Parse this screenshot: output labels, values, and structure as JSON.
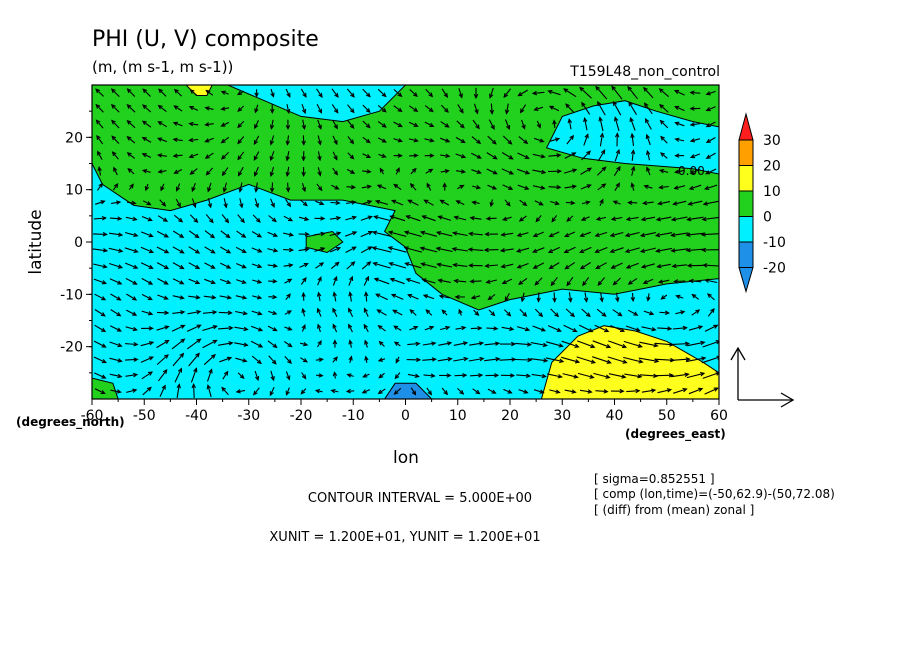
{
  "title": "PHI (U, V) composite",
  "units": "(m, (m s-1, m s-1))",
  "run_name": "T159L48_non_control",
  "xlabel": "lon",
  "ylabel": "latitude",
  "x_unit_label": "(degrees_east)",
  "y_unit_label": "(degrees_north)",
  "contour_interval": "CONTOUR INTERVAL = 5.000E+00",
  "vector_units": "XUNIT = 1.200E+01, YUNIT = 1.200E+01",
  "info_lines": [
    "[ sigma=0.852551 ]",
    "[ comp (lon,time)=(-50,62.9)-(50,72.08)",
    "[ (diff) from (mean) zonal ]"
  ],
  "contour_label": "0.00",
  "colors": {
    "level_neg20": "#1e90e8",
    "level_neg10": "#00f0ff",
    "level_0": "#22d01e",
    "level_10": "#ffff1e",
    "level_20": "#ffa000",
    "level_30": "#ff1e1e"
  },
  "chart_data": {
    "type": "heatmap",
    "overlay": "vector",
    "xlim": [
      -60,
      60
    ],
    "ylim": [
      -30,
      30
    ],
    "x_ticks": [
      -60,
      -50,
      -40,
      -30,
      -20,
      -10,
      0,
      10,
      20,
      30,
      40,
      50,
      60
    ],
    "y_ticks": [
      -20,
      -10,
      0,
      10,
      20
    ],
    "colorbar": {
      "levels": [
        -20,
        -10,
        0,
        10,
        20,
        30
      ],
      "labels": [
        "-20",
        "-10",
        "0",
        "10",
        "20",
        "30"
      ],
      "extend": "both"
    },
    "regions": [
      {
        "value_range": [
          -10,
          0
        ],
        "description": "background",
        "polygon": []
      },
      {
        "value_range": [
          0,
          10
        ],
        "polygon": [
          [
            -60,
            30
          ],
          [
            -34,
            30
          ],
          [
            -27,
            27
          ],
          [
            -20,
            24
          ],
          [
            -12,
            23
          ],
          [
            -5,
            25
          ],
          [
            0,
            30
          ],
          [
            60,
            30
          ],
          [
            60,
            22
          ],
          [
            55,
            23
          ],
          [
            48,
            25
          ],
          [
            42,
            27
          ],
          [
            36,
            26
          ],
          [
            30,
            24
          ],
          [
            27,
            18
          ],
          [
            34,
            16
          ],
          [
            42,
            15
          ],
          [
            55,
            14
          ],
          [
            60,
            13
          ],
          [
            60,
            -7
          ],
          [
            50,
            -8
          ],
          [
            40,
            -10
          ],
          [
            30,
            -9
          ],
          [
            20,
            -11
          ],
          [
            14,
            -13
          ],
          [
            7,
            -10
          ],
          [
            2,
            -6
          ],
          [
            0,
            -1
          ],
          [
            -4,
            2
          ],
          [
            -2,
            6
          ],
          [
            -12,
            8
          ],
          [
            -22,
            8
          ],
          [
            -30,
            11
          ],
          [
            -38,
            8
          ],
          [
            -45,
            6
          ],
          [
            -52,
            7
          ],
          [
            -58,
            11
          ],
          [
            -60,
            15
          ]
        ]
      },
      {
        "value_range": [
          0,
          10
        ],
        "polygon": [
          [
            -19,
            1
          ],
          [
            -14,
            2
          ],
          [
            -12,
            0
          ],
          [
            -15,
            -2
          ],
          [
            -19,
            -1
          ]
        ]
      },
      {
        "value_range": [
          0,
          10
        ],
        "polygon": [
          [
            -60,
            -26
          ],
          [
            -56,
            -27
          ],
          [
            -55,
            -30
          ],
          [
            -60,
            -30
          ]
        ]
      },
      {
        "value_range": [
          10,
          20
        ],
        "polygon": [
          [
            26,
            -30
          ],
          [
            28,
            -23
          ],
          [
            33,
            -18
          ],
          [
            38,
            -16
          ],
          [
            44,
            -17
          ],
          [
            50,
            -19
          ],
          [
            57,
            -23
          ],
          [
            60,
            -25
          ],
          [
            60,
            -30
          ]
        ]
      },
      {
        "value_range": [
          10,
          20
        ],
        "polygon": [
          [
            -42,
            30
          ],
          [
            -40,
            28
          ],
          [
            -38,
            28
          ],
          [
            -37,
            30
          ]
        ]
      },
      {
        "value_range": [
          -20,
          -10
        ],
        "polygon": [
          [
            -4,
            -30
          ],
          [
            -2,
            -27
          ],
          [
            2,
            -27
          ],
          [
            5,
            -30
          ]
        ]
      }
    ],
    "vectors_description": "wind vectors (U, V) on a regular lon-lat grid; reference vector 12 m/s"
  }
}
